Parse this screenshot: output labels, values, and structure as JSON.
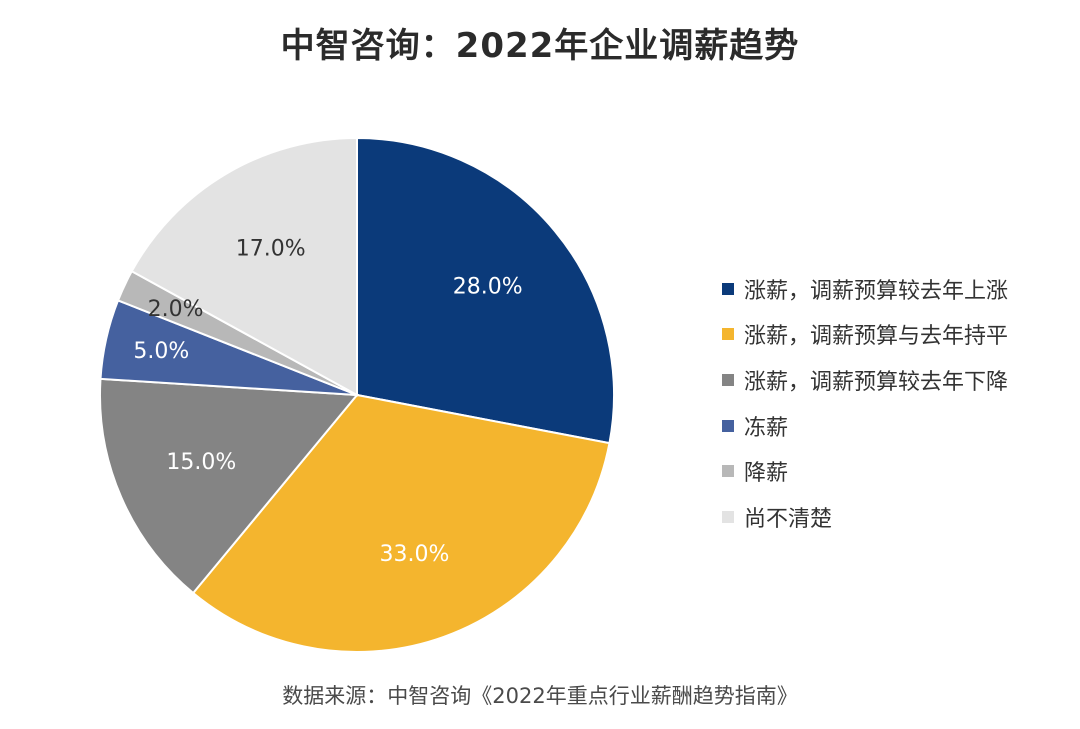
{
  "chart_data": {
    "type": "pie",
    "title": "中智咨询：2022年企业调薪趋势",
    "source": "数据来源：中智咨询《2022年重点行业薪酬趋势指南》",
    "start_angle_deg": 0,
    "direction": "clockwise",
    "legend_position": "right",
    "slices": [
      {
        "label": "涨薪，调薪预算较去年上涨",
        "value": 28.0,
        "display": "28.0%",
        "color": "#0b3a7a",
        "label_color": "#ffffff"
      },
      {
        "label": "涨薪，调薪预算与去年持平",
        "value": 33.0,
        "display": "33.0%",
        "color": "#f4b52e",
        "label_color": "#ffffff"
      },
      {
        "label": "涨薪，调薪预算较去年下降",
        "value": 15.0,
        "display": "15.0%",
        "color": "#848484",
        "label_color": "#ffffff"
      },
      {
        "label": "冻薪",
        "value": 5.0,
        "display": "5.0%",
        "color": "#45619f",
        "label_color": "#ffffff"
      },
      {
        "label": "降薪",
        "value": 2.0,
        "display": "2.0%",
        "color": "#b8b8b8",
        "label_color": "#333333"
      },
      {
        "label": "尚不清楚",
        "value": 17.0,
        "display": "17.0%",
        "color": "#e3e3e3",
        "label_color": "#333333"
      }
    ]
  }
}
